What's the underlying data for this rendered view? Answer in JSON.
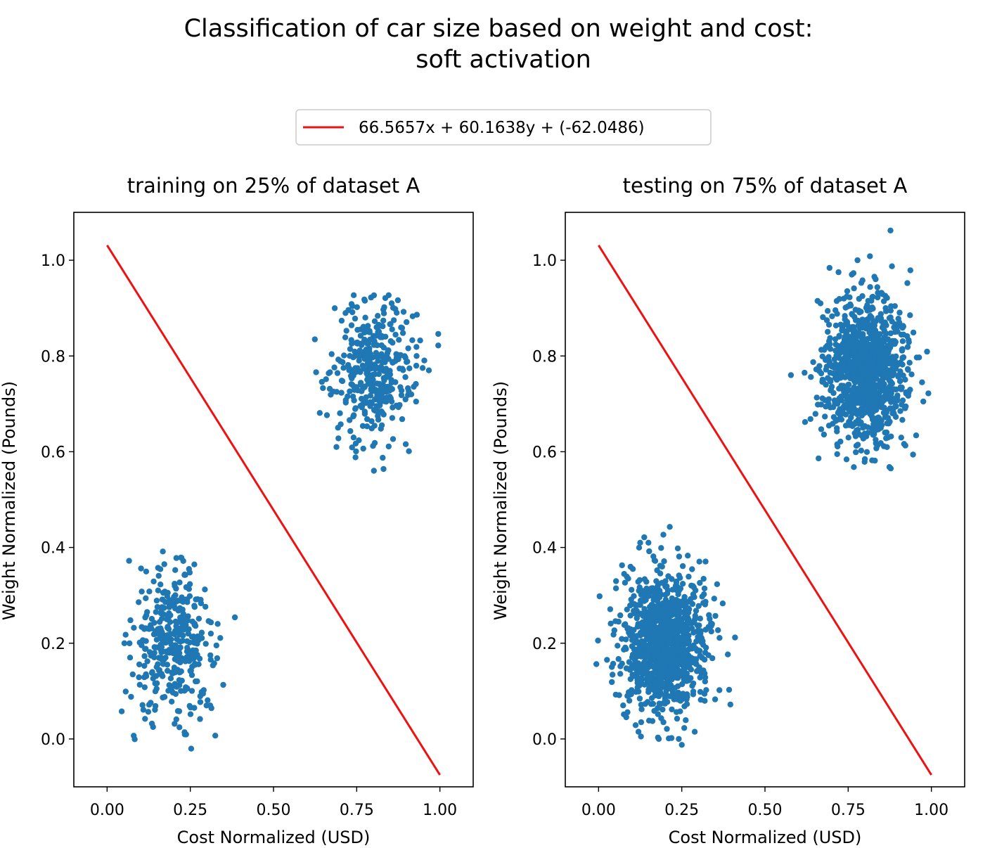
{
  "figure": {
    "title_line1": "Classification of car size based on weight and cost:",
    "title_line2": "soft activation"
  },
  "legend": {
    "label": "66.5657x + 60.1638y + (-62.0486)",
    "color": "#ee1111",
    "placement": "top-center"
  },
  "colors": {
    "points": "#1f77b4",
    "line": "#ee1111"
  },
  "chart_data": [
    {
      "type": "scatter",
      "title": "training on 25% of dataset A",
      "xlabel": "Cost Normalized (USD)",
      "ylabel": "Weight Normalized (Pounds)",
      "xlim": [
        -0.1,
        1.1
      ],
      "ylim": [
        -0.1,
        1.1
      ],
      "xticks": [
        "0.00",
        "0.25",
        "0.50",
        "0.75",
        "1.00"
      ],
      "yticks": [
        "0.0",
        "0.2",
        "0.4",
        "0.6",
        "0.8",
        "1.0"
      ],
      "grid": false,
      "line": {
        "x": [
          0.0,
          1.0
        ],
        "y": [
          1.0313,
          -0.0751
        ]
      },
      "clusters": [
        {
          "center": [
            0.2,
            0.2
          ],
          "std": [
            0.06,
            0.07
          ],
          "count": 350
        },
        {
          "center": [
            0.8,
            0.77
          ],
          "std": [
            0.06,
            0.07
          ],
          "count": 350
        }
      ],
      "points": {
        "x": [
          0.066,
          0.07,
          0.069,
          0.102,
          0.127,
          0.14,
          0.172,
          0.208,
          0.218,
          0.246,
          0.262,
          0.302,
          0.248,
          0.31,
          0.28,
          0.052,
          0.056,
          0.072,
          0.109,
          0.325,
          0.349,
          0.384,
          0.138,
          0.114,
          0.194,
          0.208,
          0.244,
          0.22,
          0.275,
          0.322,
          0.628,
          0.639,
          0.683,
          0.69,
          0.695,
          0.736,
          0.741,
          0.745,
          0.751,
          0.773,
          0.781,
          0.799,
          0.815,
          0.83,
          0.832,
          0.836,
          0.846,
          0.866,
          0.889,
          0.917,
          0.93,
          0.995,
          0.995,
          0.948,
          0.967,
          0.725,
          0.731,
          0.846,
          0.907,
          0.747
        ],
        "y": [
          0.372,
          0.248,
          0.17,
          0.356,
          0.308,
          0.329,
          0.365,
          0.378,
          0.327,
          0.355,
          0.065,
          0.081,
          0.069,
          0.07,
          0.077,
          0.2,
          0.099,
          0.088,
          0.061,
          0.007,
          0.113,
          0.254,
          0.025,
          0.042,
          0.078,
          0.041,
          0.22,
          0.272,
          0.156,
          0.158,
          0.766,
          0.681,
          0.776,
          0.725,
          0.628,
          0.609,
          0.927,
          0.878,
          0.902,
          0.918,
          0.653,
          0.612,
          0.667,
          0.874,
          0.889,
          0.921,
          0.927,
          0.898,
          0.848,
          0.833,
          0.8,
          0.846,
          0.822,
          0.775,
          0.77,
          0.896,
          0.643,
          0.611,
          0.601,
          0.617
        ]
      }
    },
    {
      "type": "scatter",
      "title": "testing on 75% of dataset A",
      "xlabel": "Cost Normalized (USD)",
      "ylabel": "Weight Normalized (Pounds)",
      "xlim": [
        -0.1,
        1.1
      ],
      "ylim": [
        -0.1,
        1.1
      ],
      "xticks": [
        "0.00",
        "0.25",
        "0.50",
        "0.75",
        "1.00"
      ],
      "yticks": [
        "0.0",
        "0.2",
        "0.4",
        "0.6",
        "0.8",
        "1.0"
      ],
      "grid": false,
      "line": {
        "x": [
          0.0,
          1.0
        ],
        "y": [
          1.0313,
          -0.0751
        ]
      },
      "clusters": [
        {
          "center": [
            0.2,
            0.2
          ],
          "std": [
            0.06,
            0.07
          ],
          "count": 1050
        },
        {
          "center": [
            0.8,
            0.77
          ],
          "std": [
            0.06,
            0.07
          ],
          "count": 1050
        }
      ],
      "points": {
        "x": [
          0.003,
          0.035,
          0.045,
          0.06,
          0.089,
          0.103,
          0.125,
          0.152,
          0.15,
          0.168,
          0.188,
          0.214,
          0.238,
          0.268,
          0.242,
          0.211,
          0.195,
          0.12,
          0.128,
          0.181,
          0.241,
          0.289,
          0.32,
          0.363,
          0.396,
          0.41,
          0.373,
          0.351,
          0.286,
          0.278,
          0.578,
          0.619,
          0.638,
          0.658,
          0.667,
          0.694,
          0.721,
          0.761,
          0.778,
          0.793,
          0.816,
          0.839,
          0.85,
          0.874,
          0.9,
          0.937,
          0.946,
          0.987,
          0.991,
          0.972,
          0.945,
          0.922,
          0.878,
          0.822,
          0.773,
          0.718,
          0.661,
          0.669,
          0.745,
          0.848
        ],
        "y": [
          0.298,
          0.271,
          0.218,
          0.245,
          0.335,
          0.355,
          0.41,
          0.392,
          0.41,
          0.373,
          0.399,
          0.443,
          0.398,
          0.383,
          0.381,
          0.001,
          0.035,
          0.015,
          0.035,
          0.0,
          0.0,
          0.015,
          0.12,
          0.102,
          0.072,
          0.212,
          0.283,
          0.257,
          0.317,
          0.145,
          0.76,
          0.765,
          0.756,
          0.915,
          0.91,
          0.984,
          0.975,
          0.97,
          1.0,
          0.958,
          0.944,
          0.932,
          0.932,
          0.879,
          0.862,
          0.979,
          0.849,
          0.809,
          0.722,
          0.745,
          0.594,
          0.613,
          0.565,
          0.582,
          0.599,
          0.611,
          0.586,
          0.647,
          0.584,
          0.618
        ]
      }
    }
  ]
}
